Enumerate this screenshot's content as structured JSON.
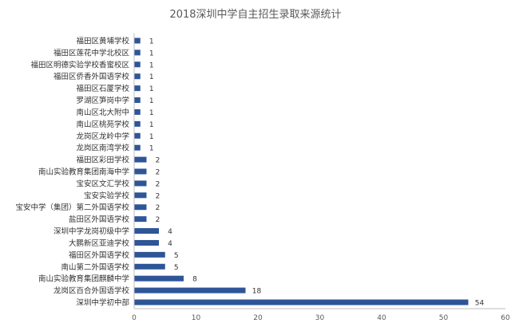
{
  "chart_data": {
    "type": "bar",
    "orientation": "horizontal",
    "title": "2018深圳中学自主招生录取来源统计",
    "xlabel": "",
    "ylabel": "",
    "categories": [
      "福田区黄埔学校",
      "福田区莲花中学北校区",
      "福田区明德实验学校香蜜校区",
      "福田区侨香外国语学校",
      "福田区石厦学校",
      "罗湖区笋岗中学",
      "南山区北大附中",
      "南山区桃苑学校",
      "龙岗区龙岭中学",
      "龙岗区南湾学校",
      "福田区彩田学校",
      "南山实验教育集团南海中学",
      "宝安区文汇学校",
      "宝安实验学校",
      "宝安中学（集团）第二外国语学校",
      "盐田区外国语学校",
      "深圳中学龙岗初级中学",
      "大鹏新区亚迪学校",
      "福田区外国语学校",
      "南山第二外国语学校",
      "南山实验教育集团麒麟中学",
      "龙岗区百合外国语学校",
      "深圳中学初中部"
    ],
    "values": [
      1,
      1,
      1,
      1,
      1,
      1,
      1,
      1,
      1,
      1,
      2,
      2,
      2,
      2,
      2,
      2,
      4,
      4,
      5,
      5,
      8,
      18,
      54
    ],
    "xlim": [
      0,
      60
    ],
    "xticks": [
      0,
      10,
      20,
      30,
      40,
      50,
      60
    ],
    "grid": false,
    "legend": "none",
    "bar_color": "#2e5597"
  }
}
